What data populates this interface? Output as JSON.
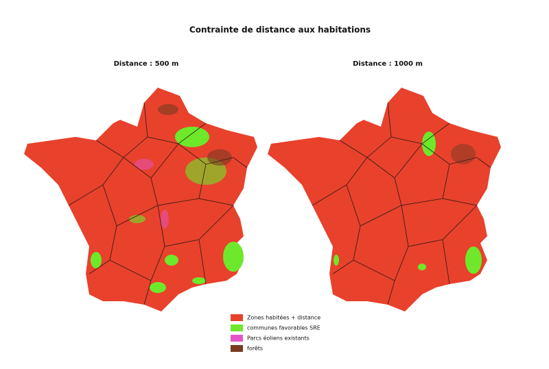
{
  "title": "Contrainte de distance aux habitations",
  "maps": [
    {
      "label": "Distance : 500 m"
    },
    {
      "label": "Distance : 1000 m"
    }
  ],
  "legend": [
    {
      "label": "Zones habitées + distance",
      "color": "#e8412c"
    },
    {
      "label": "communes favorables SRE",
      "color": "#6ee82a"
    },
    {
      "label": "Parcs éoliens existants",
      "color": "#e455c8"
    },
    {
      "label": "forêts",
      "color": "#7a3a22"
    }
  ]
}
